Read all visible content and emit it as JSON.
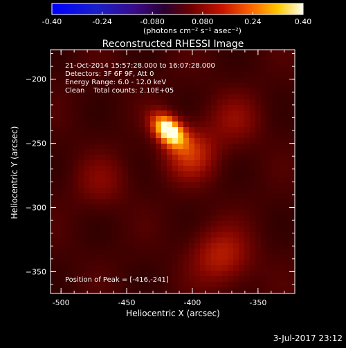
{
  "chart_data": {
    "type": "heatmap",
    "title": "Reconstructed RHESSI Image",
    "xlabel": "Heliocentric X (arcsec)",
    "ylabel": "Heliocentric Y (arcsec)",
    "xlim": [
      -508,
      -322
    ],
    "ylim": [
      -367,
      -177
    ],
    "x_ticks": [
      -500,
      -450,
      -400,
      -350
    ],
    "y_ticks": [
      -200,
      -250,
      -300,
      -350
    ],
    "x_tick_labels": [
      "-500",
      "-450",
      "-400",
      "-350"
    ],
    "y_tick_labels": [
      "−200",
      "−250",
      "−300",
      "−350"
    ],
    "colorbar": {
      "range": [
        -0.4,
        0.4
      ],
      "ticks": [
        "-0.40",
        "-0.24",
        "-0.080",
        "0.080",
        "0.24",
        "0.40"
      ],
      "label": "(photons cm⁻² s⁻¹ asec⁻²)",
      "colormap": "blue-purple-red-yellow-white"
    },
    "annotations": [
      "21-Oct-2014 15:57:28.000 to 16:07:28.000",
      "Detectors: 3F 6F 9F, Att 0",
      "Energy Range: 6.0 - 12.0 keV",
      "Clean    Total counts: 2.10E+05"
    ],
    "peak_label": "Position of Peak = [-416,-241]",
    "peak_position": [
      -416,
      -241
    ],
    "sources": [
      {
        "x": -418,
        "y": -240,
        "intensity": 0.4
      },
      {
        "x": -402,
        "y": -258,
        "intensity": 0.14
      },
      {
        "x": -378,
        "y": -338,
        "intensity": 0.12
      },
      {
        "x": -368,
        "y": -232,
        "intensity": 0.07
      },
      {
        "x": -470,
        "y": -280,
        "intensity": 0.06
      }
    ],
    "background_level": 0.07
  },
  "footer": {
    "date": "3-Jul-2017 23:12"
  },
  "colors": {
    "background": "#000000",
    "foreground": "#ffffff"
  }
}
